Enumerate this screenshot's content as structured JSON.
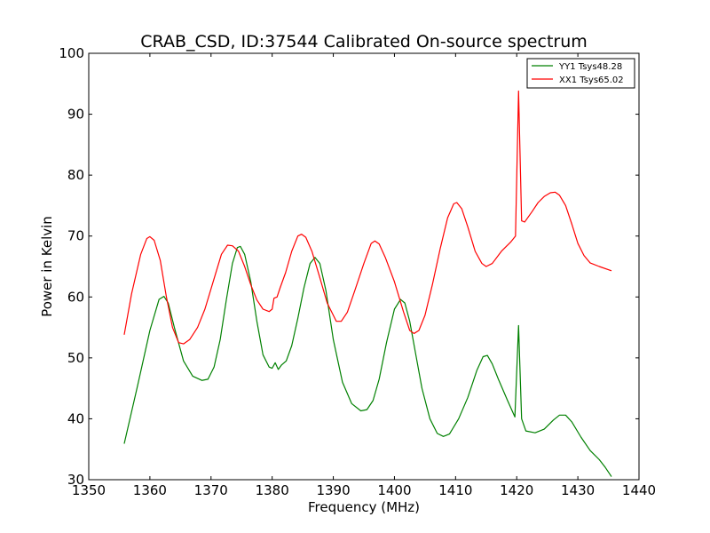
{
  "chart_data": {
    "type": "line",
    "title": "CRAB_CSD, ID:37544 Calibrated On-source spectrum",
    "xlabel": "Frequency (MHz)",
    "ylabel": "Power in Kelvin",
    "xlim": [
      1350,
      1440
    ],
    "ylim": [
      30,
      100
    ],
    "xticks": [
      1350,
      1360,
      1370,
      1380,
      1390,
      1400,
      1410,
      1420,
      1430,
      1440
    ],
    "yticks": [
      30,
      40,
      50,
      60,
      70,
      80,
      90,
      100
    ],
    "grid": false,
    "legend_position": "top-right",
    "series": [
      {
        "name": "YY1 Tsys48.28",
        "color": "#008000",
        "points": [
          [
            1355.8,
            35.9
          ],
          [
            1358,
            45.5
          ],
          [
            1360,
            54.5
          ],
          [
            1361.5,
            59.6
          ],
          [
            1362.3,
            60.1
          ],
          [
            1363,
            59
          ],
          [
            1364,
            55
          ],
          [
            1365.5,
            49.5
          ],
          [
            1367,
            47
          ],
          [
            1368.5,
            46.3
          ],
          [
            1369.5,
            46.5
          ],
          [
            1370.5,
            48.5
          ],
          [
            1371.5,
            53
          ],
          [
            1372.5,
            59.5
          ],
          [
            1373.5,
            65.5
          ],
          [
            1374.3,
            68.1
          ],
          [
            1374.8,
            68.3
          ],
          [
            1375.5,
            67
          ],
          [
            1376.5,
            62.5
          ],
          [
            1377.5,
            56
          ],
          [
            1378.5,
            50.5
          ],
          [
            1379.5,
            48.5
          ],
          [
            1380,
            48.3
          ],
          [
            1380.5,
            49.2
          ],
          [
            1381,
            48.1
          ],
          [
            1381.5,
            48.8
          ],
          [
            1382.3,
            49.5
          ],
          [
            1383.2,
            52
          ],
          [
            1384.2,
            56.5
          ],
          [
            1385.2,
            61.5
          ],
          [
            1386.2,
            65.5
          ],
          [
            1387,
            66.5
          ],
          [
            1387.8,
            65.5
          ],
          [
            1388.8,
            61
          ],
          [
            1390,
            53
          ],
          [
            1391.5,
            46
          ],
          [
            1393,
            42.5
          ],
          [
            1394.5,
            41.3
          ],
          [
            1395.5,
            41.5
          ],
          [
            1396.5,
            43
          ],
          [
            1397.5,
            46.5
          ],
          [
            1398.7,
            52.5
          ],
          [
            1400,
            58
          ],
          [
            1401,
            59.6
          ],
          [
            1401.7,
            59
          ],
          [
            1402.5,
            56
          ],
          [
            1403.5,
            50.5
          ],
          [
            1404.5,
            45
          ],
          [
            1405.8,
            40
          ],
          [
            1407,
            37.6
          ],
          [
            1408,
            37.1
          ],
          [
            1409,
            37.5
          ],
          [
            1410.5,
            40
          ],
          [
            1412,
            43.5
          ],
          [
            1413.5,
            48
          ],
          [
            1414.5,
            50.2
          ],
          [
            1415.2,
            50.4
          ],
          [
            1416,
            49
          ],
          [
            1417,
            46.5
          ],
          [
            1418.5,
            43
          ],
          [
            1419.7,
            40.3
          ],
          [
            1420.3,
            55.3
          ],
          [
            1420.8,
            40
          ],
          [
            1421.5,
            38
          ],
          [
            1423,
            37.7
          ],
          [
            1424.5,
            38.3
          ],
          [
            1426,
            39.8
          ],
          [
            1427,
            40.6
          ],
          [
            1428,
            40.6
          ],
          [
            1429,
            39.5
          ],
          [
            1430.5,
            37
          ],
          [
            1432,
            34.8
          ],
          [
            1433.5,
            33.3
          ],
          [
            1434.5,
            32
          ],
          [
            1435.5,
            30.5
          ]
        ]
      },
      {
        "name": "XX1 Tsys65.02",
        "color": "#ff0000",
        "points": [
          [
            1355.8,
            53.8
          ],
          [
            1357,
            60.5
          ],
          [
            1358.5,
            67
          ],
          [
            1359.5,
            69.6
          ],
          [
            1360,
            69.9
          ],
          [
            1360.7,
            69.3
          ],
          [
            1361.7,
            66
          ],
          [
            1362.7,
            60
          ],
          [
            1363.7,
            55
          ],
          [
            1364.7,
            52.5
          ],
          [
            1365.5,
            52.3
          ],
          [
            1366.5,
            53
          ],
          [
            1367.8,
            55
          ],
          [
            1369,
            58
          ],
          [
            1370.5,
            63
          ],
          [
            1371.7,
            67
          ],
          [
            1372.7,
            68.5
          ],
          [
            1373.5,
            68.4
          ],
          [
            1374.5,
            67.5
          ],
          [
            1375.5,
            65
          ],
          [
            1376.5,
            62
          ],
          [
            1377.5,
            59.5
          ],
          [
            1378.5,
            58
          ],
          [
            1379.5,
            57.6
          ],
          [
            1380,
            58
          ],
          [
            1380.3,
            59.8
          ],
          [
            1380.8,
            60
          ],
          [
            1381.3,
            61.5
          ],
          [
            1382.2,
            64
          ],
          [
            1383.2,
            67.5
          ],
          [
            1384.2,
            70
          ],
          [
            1384.8,
            70.3
          ],
          [
            1385.5,
            69.8
          ],
          [
            1386.5,
            67.5
          ],
          [
            1387.7,
            63.5
          ],
          [
            1389,
            59
          ],
          [
            1390.5,
            56
          ],
          [
            1391.3,
            56
          ],
          [
            1392.3,
            57.5
          ],
          [
            1393.5,
            61
          ],
          [
            1395,
            65.5
          ],
          [
            1396.2,
            68.8
          ],
          [
            1396.8,
            69.2
          ],
          [
            1397.5,
            68.7
          ],
          [
            1398.5,
            66.5
          ],
          [
            1400,
            62.5
          ],
          [
            1401.5,
            57.5
          ],
          [
            1402.5,
            54.5
          ],
          [
            1403.2,
            54
          ],
          [
            1404,
            54.5
          ],
          [
            1405,
            57
          ],
          [
            1406.2,
            62
          ],
          [
            1407.5,
            68
          ],
          [
            1408.7,
            73
          ],
          [
            1409.7,
            75.3
          ],
          [
            1410.2,
            75.5
          ],
          [
            1411,
            74.5
          ],
          [
            1412,
            71.5
          ],
          [
            1413.2,
            67.5
          ],
          [
            1414.3,
            65.5
          ],
          [
            1415,
            65
          ],
          [
            1416,
            65.5
          ],
          [
            1417.5,
            67.5
          ],
          [
            1419,
            69
          ],
          [
            1419.8,
            70
          ],
          [
            1420.3,
            93.8
          ],
          [
            1420.8,
            72.5
          ],
          [
            1421.3,
            72.3
          ],
          [
            1422.5,
            74
          ],
          [
            1423.5,
            75.5
          ],
          [
            1424.5,
            76.5
          ],
          [
            1425.5,
            77.1
          ],
          [
            1426.3,
            77.2
          ],
          [
            1427,
            76.7
          ],
          [
            1428,
            75
          ],
          [
            1429,
            72
          ],
          [
            1430,
            68.8
          ],
          [
            1431,
            66.8
          ],
          [
            1432,
            65.6
          ],
          [
            1433.5,
            65
          ],
          [
            1435.5,
            64.3
          ]
        ]
      }
    ]
  }
}
